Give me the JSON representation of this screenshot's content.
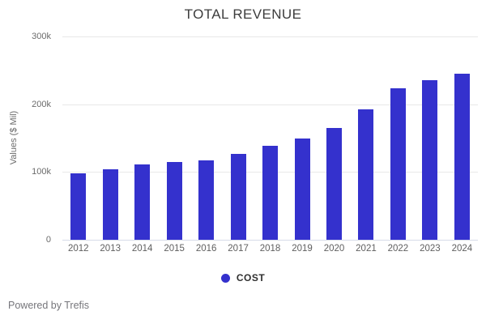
{
  "header": {
    "title": "TOTAL REVENUE"
  },
  "chart_data": {
    "type": "bar",
    "title": "TOTAL REVENUE",
    "xlabel": "",
    "ylabel": "Values ($ Mil)",
    "categories": [
      "2012",
      "2013",
      "2014",
      "2015",
      "2016",
      "2017",
      "2018",
      "2019",
      "2020",
      "2021",
      "2022",
      "2023",
      "2024"
    ],
    "values": [
      98000,
      104000,
      111000,
      115000,
      117000,
      127000,
      139000,
      150000,
      165000,
      193000,
      224000,
      235000,
      245000
    ],
    "series": [
      {
        "name": "COST",
        "values": [
          98000,
          104000,
          111000,
          115000,
          117000,
          127000,
          139000,
          150000,
          165000,
          193000,
          224000,
          235000,
          245000
        ]
      }
    ],
    "ylim": [
      0,
      300000
    ],
    "yticks": [
      {
        "value": 0,
        "label": "0"
      },
      {
        "value": 100000,
        "label": "100k"
      },
      {
        "value": 200000,
        "label": "200k"
      },
      {
        "value": 300000,
        "label": "300k"
      }
    ],
    "grid": true,
    "legend": {
      "position": "bottom",
      "entries": [
        {
          "label": "COST",
          "color": "#3431cd"
        }
      ]
    }
  },
  "colors": {
    "bar": "#3431cd",
    "grid": "#e8e8e8",
    "baseline": "#d7dbe8",
    "title_text": "#3d3d3d",
    "axis_text": "#6b6b6b",
    "legend_text": "#2f2f2f",
    "footer_text": "#76767b"
  },
  "footer": {
    "text": "Powered by Trefis"
  }
}
